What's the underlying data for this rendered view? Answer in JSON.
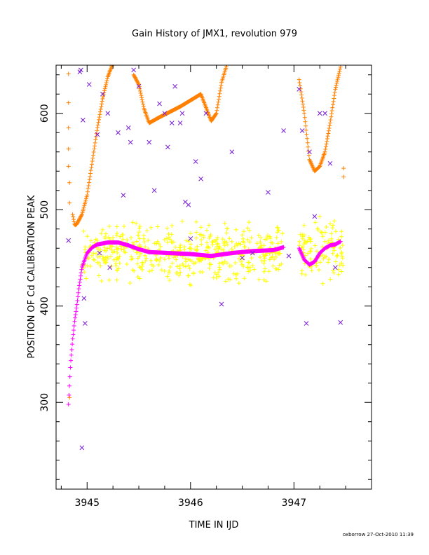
{
  "chart_data": {
    "type": "scatter",
    "title": "Gain History of JMX1, revolution 979",
    "xlabel": "TIME IN IJD",
    "ylabel": "POSITION OF Cd CALIBRATION PEAK",
    "xlim": [
      3944.7,
      3947.75
    ],
    "ylim": [
      210,
      650
    ],
    "xticks": [
      3945,
      3946,
      3947
    ],
    "yticks": [
      300,
      400,
      500,
      600
    ],
    "grid": false,
    "colors": {
      "yellow": "#ffff00",
      "magenta": "#ff00ff",
      "orange": "#ff8000",
      "purple": "#7a1fd6"
    },
    "series": [
      {
        "marker": "+",
        "color": "#ff00ff",
        "kind": "smooth",
        "x": [
          3944.82,
          3944.84,
          3944.86,
          3944.88,
          3944.9,
          3944.92,
          3944.95,
          3945.0,
          3945.05,
          3945.1,
          3945.2,
          3945.3,
          3945.4,
          3945.5,
          3945.6,
          3945.8,
          3946.0,
          3946.1,
          3946.2,
          3946.4,
          3946.6,
          3946.8,
          3946.9
        ],
        "y": [
          298,
          340,
          365,
          385,
          400,
          418,
          440,
          455,
          461,
          464,
          466,
          466,
          463,
          459,
          456,
          455,
          454,
          453,
          452,
          455,
          457,
          458,
          461
        ]
      },
      {
        "marker": "+",
        "color": "#ff00ff",
        "kind": "smooth",
        "x": [
          3947.05,
          3947.1,
          3947.15,
          3947.2,
          3947.25,
          3947.3,
          3947.35,
          3947.4,
          3947.45
        ],
        "y": [
          460,
          448,
          443,
          446,
          455,
          460,
          463,
          464,
          467
        ]
      },
      {
        "marker": "+",
        "color": "#ff8000",
        "kind": "smooth",
        "x": [
          3944.86,
          3944.88,
          3944.9,
          3944.95,
          3945.0,
          3945.05,
          3945.1,
          3945.15,
          3945.2,
          3945.25
        ],
        "y": [
          495,
          484,
          485,
          495,
          515,
          550,
          585,
          615,
          638,
          652
        ]
      },
      {
        "marker": "+",
        "color": "#ff8000",
        "kind": "smooth",
        "x": [
          3945.45,
          3945.5,
          3945.55,
          3945.6,
          3945.7,
          3945.9,
          3946.1,
          3946.2,
          3946.25,
          3946.3,
          3946.35
        ],
        "y": [
          640,
          630,
          605,
          590,
          596,
          607,
          620,
          592,
          600,
          632,
          650
        ]
      },
      {
        "marker": "+",
        "color": "#ff8000",
        "kind": "smooth",
        "x": [
          3947.05,
          3947.1,
          3947.15,
          3947.2,
          3947.25,
          3947.3,
          3947.35,
          3947.4,
          3947.45
        ],
        "y": [
          635,
          600,
          552,
          540,
          545,
          560,
          590,
          625,
          648
        ]
      },
      {
        "marker": "+",
        "color": "#ff8000",
        "kind": "points",
        "x": [
          3944.82,
          3944.82,
          3944.82,
          3944.82,
          3944.82,
          3944.83,
          3944.83,
          3944.83,
          3947.48,
          3947.48
        ],
        "y": [
          641,
          611,
          585,
          563,
          545,
          528,
          507,
          305,
          543,
          534
        ]
      },
      {
        "marker": "x",
        "color": "#7a1fd6",
        "kind": "points",
        "x": [
          3944.82,
          3944.93,
          3944.94,
          3944.96,
          3944.97,
          3944.98,
          3945.02,
          3945.1,
          3945.12,
          3945.15,
          3945.2,
          3945.22,
          3945.3,
          3945.35,
          3945.4,
          3945.42,
          3945.45,
          3945.5,
          3945.6,
          3945.65,
          3945.7,
          3945.75,
          3945.78,
          3945.82,
          3945.85,
          3945.9,
          3945.92,
          3945.95,
          3945.98,
          3946.0,
          3946.05,
          3946.1,
          3946.15,
          3946.3,
          3946.4,
          3946.5,
          3946.6,
          3946.75,
          3946.9,
          3946.95,
          3947.05,
          3947.08,
          3947.12,
          3947.15,
          3947.2,
          3947.25,
          3947.3,
          3947.35,
          3947.4,
          3947.45
        ],
        "y": [
          468,
          643,
          645,
          593,
          408,
          382,
          630,
          578,
          455,
          620,
          600,
          440,
          580,
          515,
          585,
          570,
          645,
          628,
          570,
          520,
          610,
          600,
          565,
          590,
          628,
          590,
          600,
          508,
          505,
          470,
          550,
          532,
          600,
          402,
          560,
          450,
          455,
          518,
          582,
          452,
          625,
          582,
          382,
          560,
          493,
          600,
          600,
          548,
          440,
          383
        ]
      },
      {
        "marker": "x",
        "color": "#7a1fd6",
        "kind": "points",
        "x": [
          3944.95
        ],
        "y": [
          253
        ]
      }
    ],
    "yellow_noise": {
      "marker": "+",
      "color": "#ffff00",
      "segments": [
        {
          "x_start": 3944.95,
          "x_end": 3946.9,
          "y_center": 456,
          "y_spread": 20
        },
        {
          "x_start": 3947.05,
          "x_end": 3947.48,
          "y_center": 455,
          "y_spread": 22
        }
      ]
    }
  },
  "footer": "oxborrow 27-Oct-2010 11:39"
}
